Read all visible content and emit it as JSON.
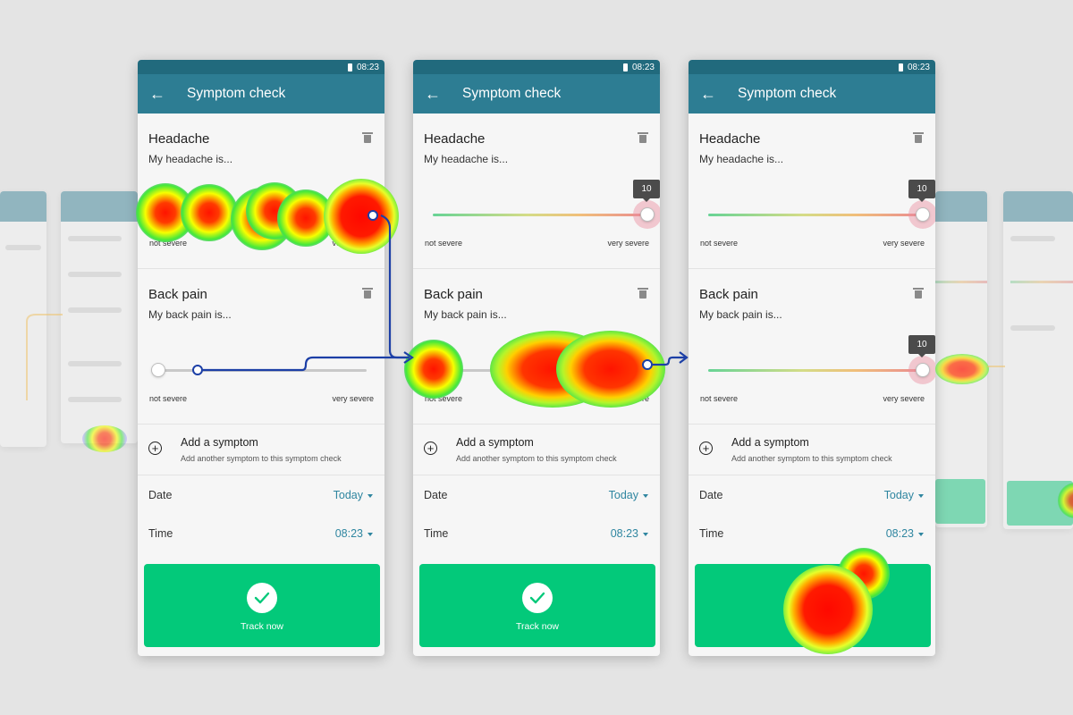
{
  "status": {
    "time": "08:23"
  },
  "appbar": {
    "title": "Symptom check"
  },
  "symptoms": [
    {
      "title": "Headache",
      "prompt": "My headache is...",
      "min_label": "not severe",
      "max_label": "very severe"
    },
    {
      "title": "Back pain",
      "prompt": "My back pain is...",
      "min_label": "not severe",
      "max_label": "very severe"
    }
  ],
  "slider_value_label": "10",
  "add_symptom": {
    "title": "Add a symptom",
    "subtitle": "Add another symptom to this symptom check"
  },
  "date": {
    "label": "Date",
    "value": "Today"
  },
  "time": {
    "label": "Time",
    "value": "08:23"
  },
  "track_button": {
    "label": "Track now"
  },
  "screens": [
    {
      "headache_level": 0,
      "back_pain_level": 0
    },
    {
      "headache_level": 1.0,
      "back_pain_level": 0
    },
    {
      "headache_level": 1.0,
      "back_pain_level": 1.0
    }
  ],
  "colors": {
    "appbar": "#2d7d93",
    "statusbar": "#216a7d",
    "accent": "#2f86a0",
    "track_button": "#03c97a"
  }
}
